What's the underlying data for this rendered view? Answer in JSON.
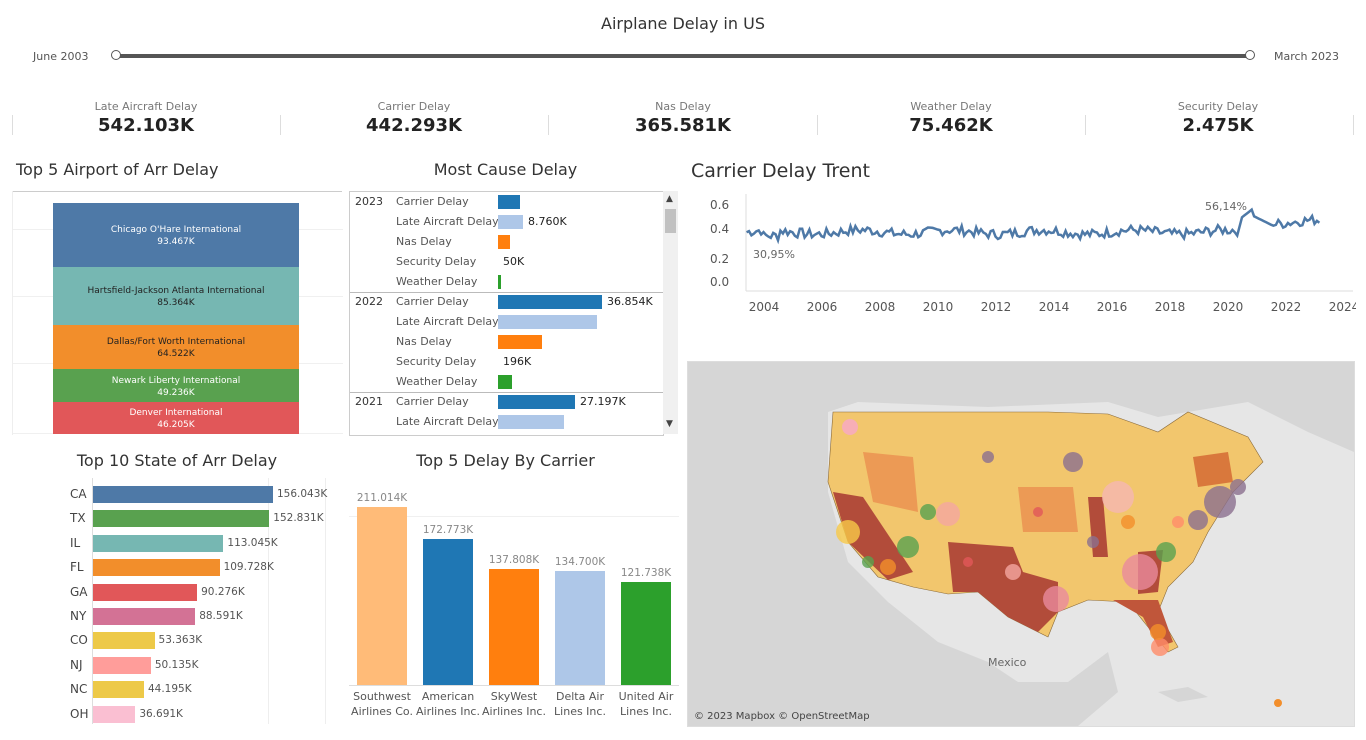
{
  "header": {
    "title": "Airplane Delay in US",
    "slider_start": "June 2003",
    "slider_end": "March 2023"
  },
  "kpis": [
    {
      "label": "Late Aircraft Delay",
      "value": "542.103K"
    },
    {
      "label": "Carrier Delay",
      "value": "442.293K"
    },
    {
      "label": "Nas Delay",
      "value": "365.581K"
    },
    {
      "label": "Weather Delay",
      "value": "75.462K"
    },
    {
      "label": "Security Delay",
      "value": "2.475K"
    }
  ],
  "airports": {
    "title": "Top 5 Airport of Arr Delay",
    "items": [
      {
        "name": "Chicago O'Hare International",
        "value": "93.467K",
        "num": 93467,
        "color": "#4e79a7"
      },
      {
        "name": "Hartsfield-Jackson Atlanta International",
        "value": "85.364K",
        "num": 85364,
        "color": "#76b7b2"
      },
      {
        "name": "Dallas/Fort Worth International",
        "value": "64.522K",
        "num": 64522,
        "color": "#f28e2b"
      },
      {
        "name": "Newark Liberty International",
        "value": "49.236K",
        "num": 49236,
        "color": "#59a14f"
      },
      {
        "name": "Denver International",
        "value": "46.205K",
        "num": 46205,
        "color": "#e15759"
      }
    ]
  },
  "causes": {
    "title": "Most Cause Delay",
    "rows": [
      {
        "year": "2023",
        "cause": "Carrier Delay",
        "frac": 0.21,
        "color": "#1f77b4",
        "label": ""
      },
      {
        "year": "",
        "cause": "Late Aircraft Delay",
        "frac": 0.24,
        "color": "#aec7e8",
        "label": "8.760K"
      },
      {
        "year": "",
        "cause": "Nas Delay",
        "frac": 0.12,
        "color": "#ff7f0e",
        "label": ""
      },
      {
        "year": "",
        "cause": "Security Delay",
        "frac": 0.0,
        "color": "#ffbb78",
        "label": "50K"
      },
      {
        "year": "",
        "cause": "Weather Delay",
        "frac": 0.03,
        "color": "#2ca02c",
        "label": ""
      },
      {
        "year": "2022",
        "cause": "Carrier Delay",
        "frac": 1.0,
        "color": "#1f77b4",
        "label": "36.854K"
      },
      {
        "year": "",
        "cause": "Late Aircraft Delay",
        "frac": 0.95,
        "color": "#aec7e8",
        "label": ""
      },
      {
        "year": "",
        "cause": "Nas Delay",
        "frac": 0.42,
        "color": "#ff7f0e",
        "label": ""
      },
      {
        "year": "",
        "cause": "Security Delay",
        "frac": 0.0,
        "color": "#ffbb78",
        "label": "196K"
      },
      {
        "year": "",
        "cause": "Weather Delay",
        "frac": 0.13,
        "color": "#2ca02c",
        "label": ""
      },
      {
        "year": "2021",
        "cause": "Carrier Delay",
        "frac": 0.74,
        "color": "#1f77b4",
        "label": "27.197K"
      },
      {
        "year": "",
        "cause": "Late Aircraft Delay",
        "frac": 0.63,
        "color": "#aec7e8",
        "label": ""
      }
    ]
  },
  "trend": {
    "title": "Carrier Delay Trent",
    "yticks": [
      "0.6",
      "0.4",
      "0.2",
      "0.0"
    ],
    "xticks": [
      "2004",
      "2006",
      "2008",
      "2010",
      "2012",
      "2014",
      "2016",
      "2018",
      "2020",
      "2022",
      "2024"
    ],
    "min_label": "30,95%",
    "max_label": "56,14%",
    "color": "#4e79a7"
  },
  "states": {
    "title": "Top 10 State of Arr Delay",
    "items": [
      {
        "state": "CA",
        "value": "156.043K",
        "num": 156043,
        "color": "#4e79a7"
      },
      {
        "state": "TX",
        "value": "152.831K",
        "num": 152831,
        "color": "#59a14f"
      },
      {
        "state": "IL",
        "value": "113.045K",
        "num": 113045,
        "color": "#76b7b2"
      },
      {
        "state": "FL",
        "value": "109.728K",
        "num": 109728,
        "color": "#f28e2b"
      },
      {
        "state": "GA",
        "value": "90.276K",
        "num": 90276,
        "color": "#e15759"
      },
      {
        "state": "NY",
        "value": "88.591K",
        "num": 88591,
        "color": "#d37295"
      },
      {
        "state": "CO",
        "value": "53.363K",
        "num": 53363,
        "color": "#edc948"
      },
      {
        "state": "NJ",
        "value": "50.135K",
        "num": 50135,
        "color": "#ff9d9a"
      },
      {
        "state": "NC",
        "value": "44.195K",
        "num": 44195,
        "color": "#edc948"
      },
      {
        "state": "OH",
        "value": "36.691K",
        "num": 36691,
        "color": "#fabfd2"
      }
    ]
  },
  "carriers": {
    "title": "Top 5 Delay By Carrier",
    "items": [
      {
        "name1": "Southwest",
        "name2": "Airlines Co.",
        "value": "211.014K",
        "num": 211014,
        "color": "#ffbb78"
      },
      {
        "name1": "American",
        "name2": "Airlines Inc.",
        "value": "172.773K",
        "num": 172773,
        "color": "#1f77b4"
      },
      {
        "name1": "SkyWest",
        "name2": "Airlines Inc.",
        "value": "137.808K",
        "num": 137808,
        "color": "#ff7f0e"
      },
      {
        "name1": "Delta Air",
        "name2": "Lines Inc.",
        "value": "134.700K",
        "num": 134700,
        "color": "#aec7e8"
      },
      {
        "name1": "United Air",
        "name2": "Lines Inc.",
        "value": "121.738K",
        "num": 121738,
        "color": "#2ca02c"
      }
    ]
  },
  "map": {
    "attribution": "© 2023 Mapbox © OpenStreetMap",
    "label": "Mexico"
  }
}
